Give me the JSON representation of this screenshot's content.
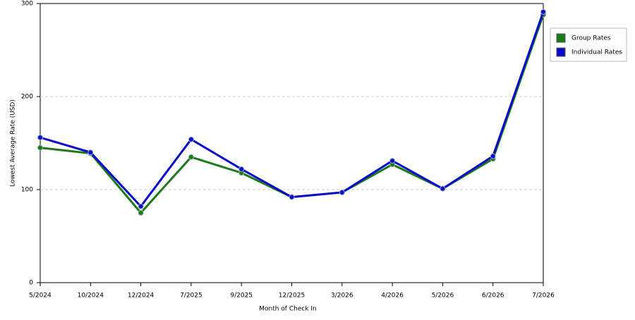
{
  "chart_data": {
    "type": "line",
    "x_label": "Month of Check In",
    "y_label": "Lowest Average Rate (USD)",
    "categories": [
      "5/2024",
      "10/2024",
      "12/2024",
      "7/2025",
      "9/2025",
      "12/2025",
      "3/2026",
      "4/2026",
      "5/2026",
      "6/2026",
      "7/2026"
    ],
    "series": [
      {
        "name": "Group Rates",
        "color": "#1a7a1a",
        "values": [
          145,
          139,
          75,
          135,
          118,
          92,
          97,
          127,
          101,
          133,
          288
        ]
      },
      {
        "name": "Individual Rates",
        "color": "#0a0acc",
        "values": [
          156,
          140,
          82,
          154,
          122,
          92,
          97,
          131,
          101,
          136,
          291
        ]
      }
    ],
    "ylim": [
      0,
      300
    ],
    "yticks": [
      0,
      100,
      200,
      300
    ],
    "grid": true,
    "legend": "right"
  }
}
